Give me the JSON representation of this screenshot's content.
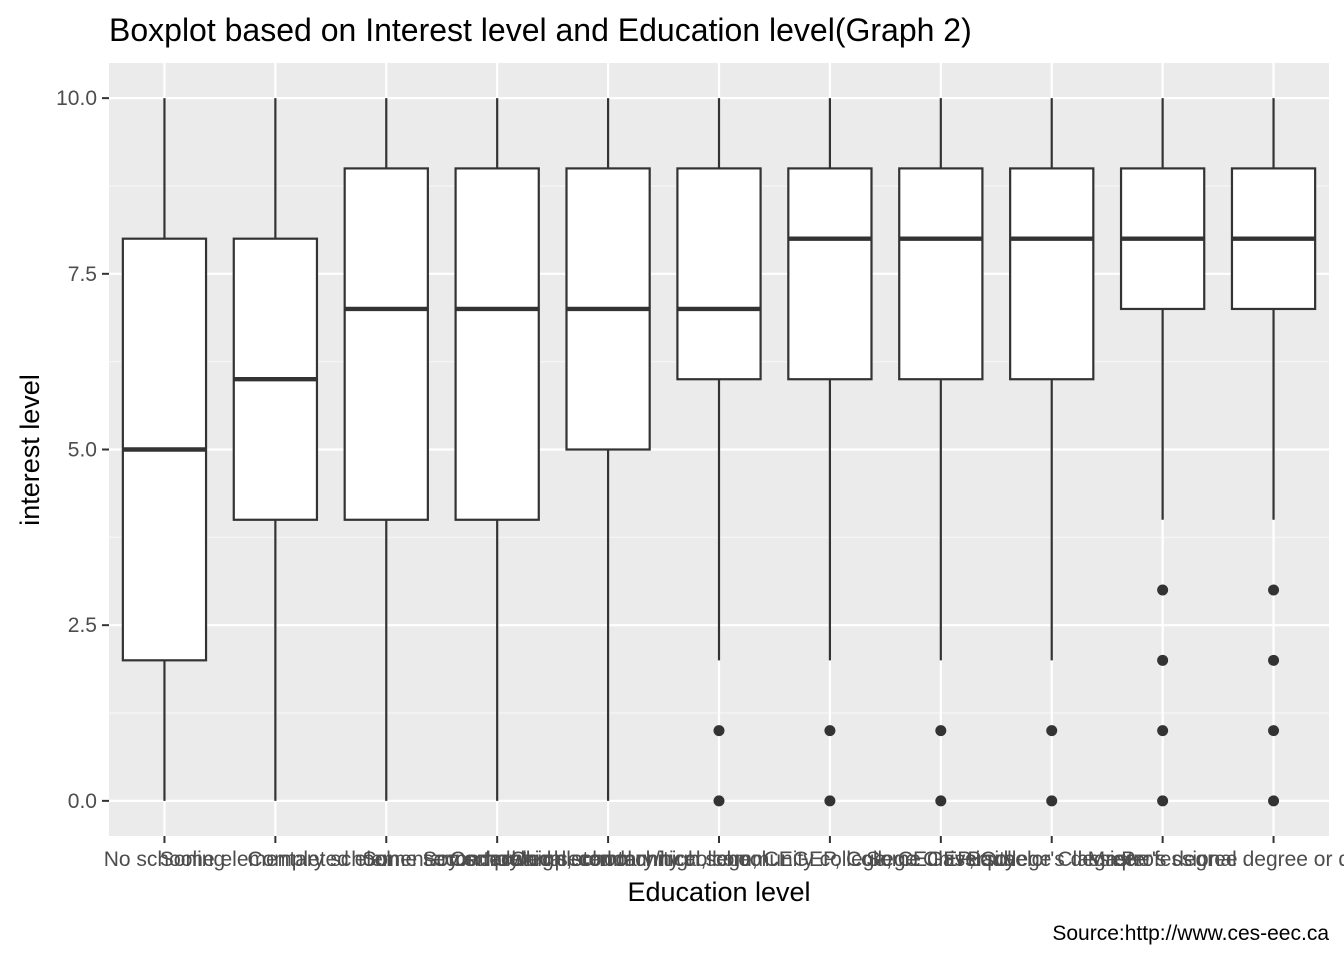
{
  "chart_data": {
    "type": "boxplot",
    "title": "Boxplot based on Interest level and Education level(Graph 2)",
    "xlabel": "Education level",
    "ylabel": "interest level",
    "caption": "Source:http://www.ces-eec.ca",
    "ylim": [
      -0.5,
      10.5
    ],
    "yticks": [
      0.0,
      2.5,
      5.0,
      7.5,
      10.0
    ],
    "ytick_labels": [
      "0.0",
      "2.5",
      "5.0",
      "7.5",
      "10.0"
    ],
    "grid": true,
    "categories": [
      "No schooling",
      "Some elementary school",
      "Completed elementary school",
      "Some secondary/high school",
      "Completed secondary/high school",
      "Some technical, community college, CEGEP, College Classique",
      "Completed technical, community college, CEGEP, College Classique",
      "Some university",
      "Bachelor's degree",
      "Master's degree",
      "Professional degree or doctorate"
    ],
    "boxes": [
      {
        "whisker_low": 0,
        "q1": 2,
        "median": 5,
        "q3": 8,
        "whisker_high": 10,
        "outliers": []
      },
      {
        "whisker_low": 0,
        "q1": 4,
        "median": 6,
        "q3": 8,
        "whisker_high": 10,
        "outliers": []
      },
      {
        "whisker_low": 0,
        "q1": 4,
        "median": 7,
        "q3": 9,
        "whisker_high": 10,
        "outliers": []
      },
      {
        "whisker_low": 0,
        "q1": 4,
        "median": 7,
        "q3": 9,
        "whisker_high": 10,
        "outliers": []
      },
      {
        "whisker_low": 0,
        "q1": 5,
        "median": 7,
        "q3": 9,
        "whisker_high": 10,
        "outliers": []
      },
      {
        "whisker_low": 2,
        "q1": 6,
        "median": 7,
        "q3": 9,
        "whisker_high": 10,
        "outliers": [
          0,
          1
        ]
      },
      {
        "whisker_low": 2,
        "q1": 6,
        "median": 8,
        "q3": 9,
        "whisker_high": 10,
        "outliers": [
          0,
          1
        ]
      },
      {
        "whisker_low": 2,
        "q1": 6,
        "median": 8,
        "q3": 9,
        "whisker_high": 10,
        "outliers": [
          0,
          1
        ]
      },
      {
        "whisker_low": 2,
        "q1": 6,
        "median": 8,
        "q3": 9,
        "whisker_high": 10,
        "outliers": [
          0,
          1
        ]
      },
      {
        "whisker_low": 4,
        "q1": 7,
        "median": 8,
        "q3": 9,
        "whisker_high": 10,
        "outliers": [
          0,
          1,
          2,
          3
        ]
      },
      {
        "whisker_low": 4,
        "q1": 7,
        "median": 8,
        "q3": 9,
        "whisker_high": 10,
        "outliers": [
          0,
          1,
          2,
          3
        ]
      }
    ],
    "colors": {
      "panel_background": "#ebebeb",
      "grid_major": "#ffffff",
      "grid_minor": "#f5f5f5",
      "box_fill": "#ffffff",
      "box_line": "#333333",
      "outlier": "#333333",
      "tick_text": "#4d4d4d",
      "tick_mark": "#333333"
    }
  }
}
